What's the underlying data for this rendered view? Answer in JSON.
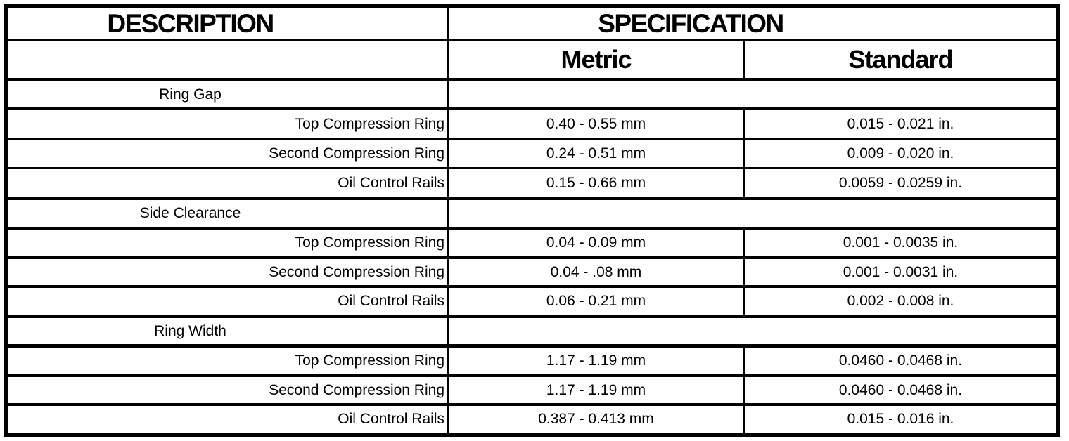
{
  "colors": {
    "border": "#000000",
    "background": "#ffffff",
    "text": "#000000"
  },
  "table": {
    "header": {
      "description": "DESCRIPTION",
      "specification": "SPECIFICATION",
      "metric": "Metric",
      "standard": "Standard"
    },
    "rows": [
      {
        "type": "category",
        "label": "Ring Gap",
        "metric": "",
        "standard": ""
      },
      {
        "type": "item",
        "label": "Top Compression Ring",
        "metric": "0.40 - 0.55 mm",
        "standard": "0.015 - 0.021 in."
      },
      {
        "type": "item",
        "label": "Second Compression Ring",
        "metric": "0.24 - 0.51 mm",
        "standard": "0.009 - 0.020 in."
      },
      {
        "type": "item",
        "label": "Oil Control Rails",
        "metric": "0.15 - 0.66 mm",
        "standard": "0.0059 - 0.0259 in."
      },
      {
        "type": "category",
        "label": "Side Clearance",
        "metric": "",
        "standard": ""
      },
      {
        "type": "item",
        "label": "Top Compression Ring",
        "metric": "0.04 - 0.09 mm",
        "standard": "0.001 - 0.0035 in."
      },
      {
        "type": "item",
        "label": "Second Compression Ring",
        "metric": "0.04 - .08 mm",
        "standard": "0.001 - 0.0031 in."
      },
      {
        "type": "item",
        "label": "Oil Control Rails",
        "metric": "0.06 - 0.21 mm",
        "standard": "0.002 - 0.008 in."
      },
      {
        "type": "category",
        "label": "Ring Width",
        "metric": "",
        "standard": ""
      },
      {
        "type": "item",
        "label": "Top Compression Ring",
        "metric": "1.17 - 1.19 mm",
        "standard": "0.0460 - 0.0468 in."
      },
      {
        "type": "item",
        "label": "Second Compression Ring",
        "metric": "1.17 - 1.19 mm",
        "standard": "0.0460 - 0.0468 in."
      },
      {
        "type": "item",
        "label": "Oil Control Rails",
        "metric": "0.387 - 0.413 mm",
        "standard": "0.015 - 0.016 in."
      }
    ]
  }
}
